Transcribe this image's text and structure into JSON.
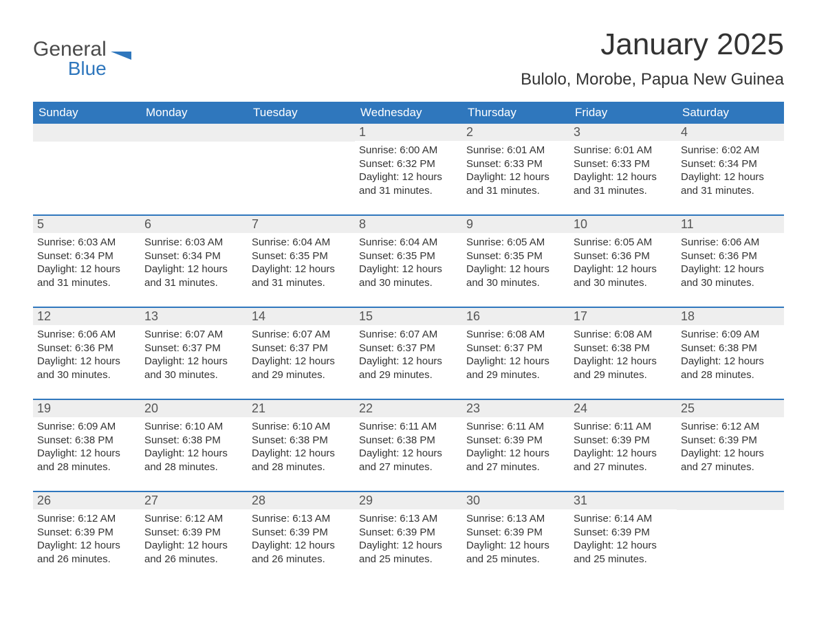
{
  "logo": {
    "general": "General",
    "blue": "Blue",
    "icon_color": "#2f77bd"
  },
  "title": "January 2025",
  "location": "Bulolo, Morobe, Papua New Guinea",
  "colors": {
    "header_bg": "#2f77bd",
    "header_text": "#ffffff",
    "daynum_bg": "#eeeeee",
    "daynum_text": "#555555",
    "body_text": "#333333",
    "row_border": "#2f77bd",
    "page_bg": "#ffffff"
  },
  "typography": {
    "title_fontsize": 44,
    "location_fontsize": 24,
    "weekday_fontsize": 17,
    "daynum_fontsize": 18,
    "body_fontsize": 15
  },
  "layout": {
    "columns": 7,
    "rows": 5,
    "first_day_column": 3
  },
  "weekdays": [
    "Sunday",
    "Monday",
    "Tuesday",
    "Wednesday",
    "Thursday",
    "Friday",
    "Saturday"
  ],
  "days": [
    {
      "n": "1",
      "sunrise": "6:00 AM",
      "sunset": "6:32 PM",
      "daylight": "12 hours and 31 minutes."
    },
    {
      "n": "2",
      "sunrise": "6:01 AM",
      "sunset": "6:33 PM",
      "daylight": "12 hours and 31 minutes."
    },
    {
      "n": "3",
      "sunrise": "6:01 AM",
      "sunset": "6:33 PM",
      "daylight": "12 hours and 31 minutes."
    },
    {
      "n": "4",
      "sunrise": "6:02 AM",
      "sunset": "6:34 PM",
      "daylight": "12 hours and 31 minutes."
    },
    {
      "n": "5",
      "sunrise": "6:03 AM",
      "sunset": "6:34 PM",
      "daylight": "12 hours and 31 minutes."
    },
    {
      "n": "6",
      "sunrise": "6:03 AM",
      "sunset": "6:34 PM",
      "daylight": "12 hours and 31 minutes."
    },
    {
      "n": "7",
      "sunrise": "6:04 AM",
      "sunset": "6:35 PM",
      "daylight": "12 hours and 31 minutes."
    },
    {
      "n": "8",
      "sunrise": "6:04 AM",
      "sunset": "6:35 PM",
      "daylight": "12 hours and 30 minutes."
    },
    {
      "n": "9",
      "sunrise": "6:05 AM",
      "sunset": "6:35 PM",
      "daylight": "12 hours and 30 minutes."
    },
    {
      "n": "10",
      "sunrise": "6:05 AM",
      "sunset": "6:36 PM",
      "daylight": "12 hours and 30 minutes."
    },
    {
      "n": "11",
      "sunrise": "6:06 AM",
      "sunset": "6:36 PM",
      "daylight": "12 hours and 30 minutes."
    },
    {
      "n": "12",
      "sunrise": "6:06 AM",
      "sunset": "6:36 PM",
      "daylight": "12 hours and 30 minutes."
    },
    {
      "n": "13",
      "sunrise": "6:07 AM",
      "sunset": "6:37 PM",
      "daylight": "12 hours and 30 minutes."
    },
    {
      "n": "14",
      "sunrise": "6:07 AM",
      "sunset": "6:37 PM",
      "daylight": "12 hours and 29 minutes."
    },
    {
      "n": "15",
      "sunrise": "6:07 AM",
      "sunset": "6:37 PM",
      "daylight": "12 hours and 29 minutes."
    },
    {
      "n": "16",
      "sunrise": "6:08 AM",
      "sunset": "6:37 PM",
      "daylight": "12 hours and 29 minutes."
    },
    {
      "n": "17",
      "sunrise": "6:08 AM",
      "sunset": "6:38 PM",
      "daylight": "12 hours and 29 minutes."
    },
    {
      "n": "18",
      "sunrise": "6:09 AM",
      "sunset": "6:38 PM",
      "daylight": "12 hours and 28 minutes."
    },
    {
      "n": "19",
      "sunrise": "6:09 AM",
      "sunset": "6:38 PM",
      "daylight": "12 hours and 28 minutes."
    },
    {
      "n": "20",
      "sunrise": "6:10 AM",
      "sunset": "6:38 PM",
      "daylight": "12 hours and 28 minutes."
    },
    {
      "n": "21",
      "sunrise": "6:10 AM",
      "sunset": "6:38 PM",
      "daylight": "12 hours and 28 minutes."
    },
    {
      "n": "22",
      "sunrise": "6:11 AM",
      "sunset": "6:38 PM",
      "daylight": "12 hours and 27 minutes."
    },
    {
      "n": "23",
      "sunrise": "6:11 AM",
      "sunset": "6:39 PM",
      "daylight": "12 hours and 27 minutes."
    },
    {
      "n": "24",
      "sunrise": "6:11 AM",
      "sunset": "6:39 PM",
      "daylight": "12 hours and 27 minutes."
    },
    {
      "n": "25",
      "sunrise": "6:12 AM",
      "sunset": "6:39 PM",
      "daylight": "12 hours and 27 minutes."
    },
    {
      "n": "26",
      "sunrise": "6:12 AM",
      "sunset": "6:39 PM",
      "daylight": "12 hours and 26 minutes."
    },
    {
      "n": "27",
      "sunrise": "6:12 AM",
      "sunset": "6:39 PM",
      "daylight": "12 hours and 26 minutes."
    },
    {
      "n": "28",
      "sunrise": "6:13 AM",
      "sunset": "6:39 PM",
      "daylight": "12 hours and 26 minutes."
    },
    {
      "n": "29",
      "sunrise": "6:13 AM",
      "sunset": "6:39 PM",
      "daylight": "12 hours and 25 minutes."
    },
    {
      "n": "30",
      "sunrise": "6:13 AM",
      "sunset": "6:39 PM",
      "daylight": "12 hours and 25 minutes."
    },
    {
      "n": "31",
      "sunrise": "6:14 AM",
      "sunset": "6:39 PM",
      "daylight": "12 hours and 25 minutes."
    }
  ],
  "labels": {
    "sunrise": "Sunrise: ",
    "sunset": "Sunset: ",
    "daylight": "Daylight: "
  }
}
